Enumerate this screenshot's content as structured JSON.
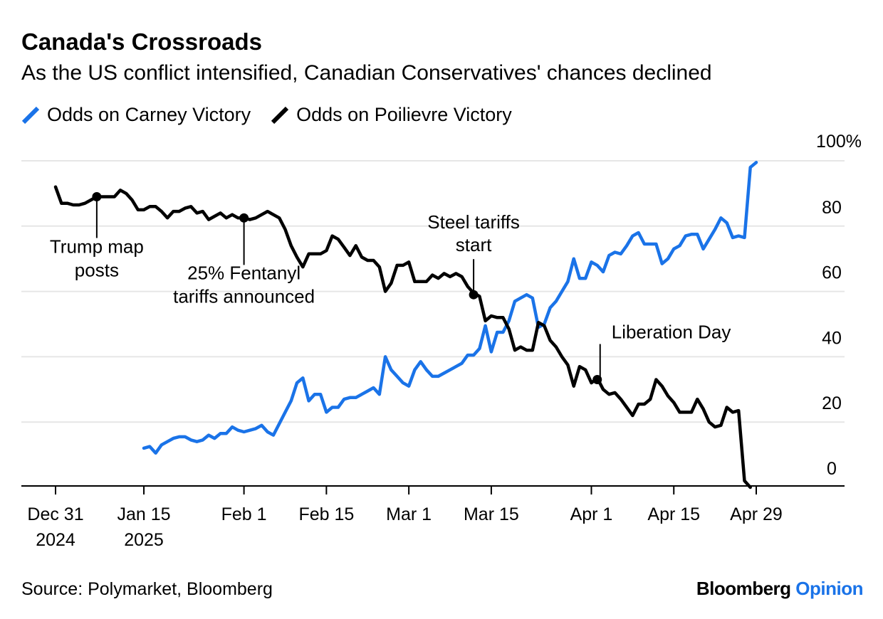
{
  "title": "Canada's Crossroads",
  "subtitle": "As the US conflict intensified, Canadian Conservatives' chances declined",
  "source": "Source: Polymarket, Bloomberg",
  "brand": {
    "name": "Bloomberg",
    "section": "Opinion"
  },
  "colors": {
    "carney": "#1a73e8",
    "poilievre": "#000000",
    "grid": "#e6e6e6"
  },
  "chart_data": {
    "type": "line",
    "ylim": [
      0,
      100
    ],
    "y_ticks": [
      0,
      20,
      40,
      60,
      80,
      100
    ],
    "y_tick_labels": [
      "0",
      "20",
      "40",
      "60",
      "80",
      "100%"
    ],
    "x_ticks": [
      {
        "date": "2024-12-31",
        "line1": "Dec 31",
        "line2": "2024"
      },
      {
        "date": "2025-01-15",
        "line1": "Jan 15",
        "line2": "2025"
      },
      {
        "date": "2025-02-01",
        "line1": "Feb 1",
        "line2": ""
      },
      {
        "date": "2025-02-15",
        "line1": "Feb 15",
        "line2": ""
      },
      {
        "date": "2025-03-01",
        "line1": "Mar 1",
        "line2": ""
      },
      {
        "date": "2025-03-15",
        "line1": "Mar 15",
        "line2": ""
      },
      {
        "date": "2025-04-01",
        "line1": "Apr 1",
        "line2": ""
      },
      {
        "date": "2025-04-15",
        "line1": "Apr 15",
        "line2": ""
      },
      {
        "date": "2025-04-29",
        "line1": "Apr 29",
        "line2": ""
      }
    ],
    "legend_position": "top-left",
    "series": [
      {
        "name": "Odds on Carney Victory",
        "color": "#1a73e8",
        "points": [
          [
            "2025-01-15",
            12
          ],
          [
            "2025-01-16",
            12.5
          ],
          [
            "2025-01-17",
            10.5
          ],
          [
            "2025-01-18",
            13
          ],
          [
            "2025-01-19",
            14
          ],
          [
            "2025-01-20",
            15
          ],
          [
            "2025-01-21",
            15.5
          ],
          [
            "2025-01-22",
            15.5
          ],
          [
            "2025-01-23",
            14.5
          ],
          [
            "2025-01-24",
            14
          ],
          [
            "2025-01-25",
            14.5
          ],
          [
            "2025-01-26",
            16
          ],
          [
            "2025-01-27",
            15
          ],
          [
            "2025-01-28",
            16.5
          ],
          [
            "2025-01-29",
            16.5
          ],
          [
            "2025-01-30",
            18.5
          ],
          [
            "2025-01-31",
            17.5
          ],
          [
            "2025-02-01",
            17
          ],
          [
            "2025-02-02",
            17.5
          ],
          [
            "2025-02-03",
            18
          ],
          [
            "2025-02-04",
            19
          ],
          [
            "2025-02-05",
            17
          ],
          [
            "2025-02-06",
            16
          ],
          [
            "2025-02-07",
            19.5
          ],
          [
            "2025-02-08",
            23
          ],
          [
            "2025-02-09",
            26.5
          ],
          [
            "2025-02-10",
            32
          ],
          [
            "2025-02-11",
            33.5
          ],
          [
            "2025-02-12",
            26.5
          ],
          [
            "2025-02-13",
            28.5
          ],
          [
            "2025-02-14",
            28.5
          ],
          [
            "2025-02-15",
            23
          ],
          [
            "2025-02-16",
            24.5
          ],
          [
            "2025-02-17",
            24.5
          ],
          [
            "2025-02-18",
            27
          ],
          [
            "2025-02-19",
            27.5
          ],
          [
            "2025-02-20",
            27.5
          ],
          [
            "2025-02-21",
            28.5
          ],
          [
            "2025-02-22",
            29.5
          ],
          [
            "2025-02-23",
            30.5
          ],
          [
            "2025-02-24",
            28.5
          ],
          [
            "2025-02-25",
            40
          ],
          [
            "2025-02-26",
            36
          ],
          [
            "2025-02-27",
            34
          ],
          [
            "2025-02-28",
            32
          ],
          [
            "2025-03-01",
            31
          ],
          [
            "2025-03-02",
            36
          ],
          [
            "2025-03-03",
            38.5
          ],
          [
            "2025-03-04",
            36
          ],
          [
            "2025-03-05",
            34
          ],
          [
            "2025-03-06",
            34
          ],
          [
            "2025-03-07",
            35
          ],
          [
            "2025-03-08",
            36
          ],
          [
            "2025-03-09",
            37
          ],
          [
            "2025-03-10",
            38
          ],
          [
            "2025-03-11",
            40.5
          ],
          [
            "2025-03-12",
            40.5
          ],
          [
            "2025-03-13",
            42.5
          ],
          [
            "2025-03-14",
            49.5
          ],
          [
            "2025-03-15",
            41.5
          ],
          [
            "2025-03-16",
            47.5
          ],
          [
            "2025-03-17",
            47.5
          ],
          [
            "2025-03-18",
            51
          ],
          [
            "2025-03-19",
            57
          ],
          [
            "2025-03-20",
            58
          ],
          [
            "2025-03-21",
            59
          ],
          [
            "2025-03-22",
            58
          ],
          [
            "2025-03-23",
            49
          ],
          [
            "2025-03-24",
            50
          ],
          [
            "2025-03-25",
            55
          ],
          [
            "2025-03-26",
            57
          ],
          [
            "2025-03-27",
            60
          ],
          [
            "2025-03-28",
            63
          ],
          [
            "2025-03-29",
            70
          ],
          [
            "2025-03-30",
            64
          ],
          [
            "2025-03-31",
            64
          ],
          [
            "2025-04-01",
            69
          ],
          [
            "2025-04-02",
            68
          ],
          [
            "2025-04-03",
            66
          ],
          [
            "2025-04-04",
            71
          ],
          [
            "2025-04-05",
            72
          ],
          [
            "2025-04-06",
            71.5
          ],
          [
            "2025-04-07",
            74
          ],
          [
            "2025-04-08",
            77
          ],
          [
            "2025-04-09",
            78
          ],
          [
            "2025-04-10",
            74.5
          ],
          [
            "2025-04-11",
            74.5
          ],
          [
            "2025-04-12",
            74.5
          ],
          [
            "2025-04-13",
            68.5
          ],
          [
            "2025-04-14",
            70
          ],
          [
            "2025-04-15",
            73
          ],
          [
            "2025-04-16",
            74
          ],
          [
            "2025-04-17",
            77
          ],
          [
            "2025-04-18",
            77.5
          ],
          [
            "2025-04-19",
            77.5
          ],
          [
            "2025-04-20",
            73
          ],
          [
            "2025-04-21",
            76
          ],
          [
            "2025-04-22",
            79
          ],
          [
            "2025-04-23",
            82.5
          ],
          [
            "2025-04-24",
            81
          ],
          [
            "2025-04-25",
            76.5
          ],
          [
            "2025-04-26",
            77
          ],
          [
            "2025-04-27",
            76.5
          ],
          [
            "2025-04-28",
            98
          ],
          [
            "2025-04-29",
            99.5
          ]
        ]
      },
      {
        "name": "Odds on Poilievre Victory",
        "color": "#000000",
        "points": [
          [
            "2024-12-31",
            92
          ],
          [
            "2025-01-01",
            87
          ],
          [
            "2025-01-02",
            87
          ],
          [
            "2025-01-03",
            86.5
          ],
          [
            "2025-01-04",
            86.5
          ],
          [
            "2025-01-05",
            87
          ],
          [
            "2025-01-06",
            88
          ],
          [
            "2025-01-07",
            89
          ],
          [
            "2025-01-08",
            89
          ],
          [
            "2025-01-09",
            89
          ],
          [
            "2025-01-10",
            89
          ],
          [
            "2025-01-11",
            91
          ],
          [
            "2025-01-12",
            90
          ],
          [
            "2025-01-13",
            88
          ],
          [
            "2025-01-14",
            85
          ],
          [
            "2025-01-15",
            85
          ],
          [
            "2025-01-16",
            86
          ],
          [
            "2025-01-17",
            86
          ],
          [
            "2025-01-18",
            84.5
          ],
          [
            "2025-01-19",
            82.5
          ],
          [
            "2025-01-20",
            84.5
          ],
          [
            "2025-01-21",
            84.5
          ],
          [
            "2025-01-22",
            85.5
          ],
          [
            "2025-01-23",
            86
          ],
          [
            "2025-01-24",
            84
          ],
          [
            "2025-01-25",
            84.5
          ],
          [
            "2025-01-26",
            82
          ],
          [
            "2025-01-27",
            83
          ],
          [
            "2025-01-28",
            84
          ],
          [
            "2025-01-29",
            82.5
          ],
          [
            "2025-01-30",
            83.5
          ],
          [
            "2025-01-31",
            82.5
          ],
          [
            "2025-02-01",
            82.5
          ],
          [
            "2025-02-02",
            82
          ],
          [
            "2025-02-03",
            82.5
          ],
          [
            "2025-02-04",
            83.5
          ],
          [
            "2025-02-05",
            84.5
          ],
          [
            "2025-02-06",
            83.5
          ],
          [
            "2025-02-07",
            82.5
          ],
          [
            "2025-02-08",
            79
          ],
          [
            "2025-02-09",
            74
          ],
          [
            "2025-02-10",
            70.5
          ],
          [
            "2025-02-11",
            67.5
          ],
          [
            "2025-02-12",
            71.5
          ],
          [
            "2025-02-13",
            71.5
          ],
          [
            "2025-02-14",
            71.5
          ],
          [
            "2025-02-15",
            72.5
          ],
          [
            "2025-02-16",
            77
          ],
          [
            "2025-02-17",
            76
          ],
          [
            "2025-02-18",
            73.5
          ],
          [
            "2025-02-19",
            71
          ],
          [
            "2025-02-20",
            74
          ],
          [
            "2025-02-21",
            70.5
          ],
          [
            "2025-02-22",
            69.5
          ],
          [
            "2025-02-23",
            69.5
          ],
          [
            "2025-02-24",
            67.5
          ],
          [
            "2025-02-25",
            60
          ],
          [
            "2025-02-26",
            62.5
          ],
          [
            "2025-02-27",
            68
          ],
          [
            "2025-02-28",
            68
          ],
          [
            "2025-03-01",
            69
          ],
          [
            "2025-03-02",
            63
          ],
          [
            "2025-03-03",
            63
          ],
          [
            "2025-03-04",
            63
          ],
          [
            "2025-03-05",
            65
          ],
          [
            "2025-03-06",
            64
          ],
          [
            "2025-03-07",
            65.5
          ],
          [
            "2025-03-08",
            64.5
          ],
          [
            "2025-03-09",
            65.5
          ],
          [
            "2025-03-10",
            64.5
          ],
          [
            "2025-03-11",
            61.5
          ],
          [
            "2025-03-12",
            59.5
          ],
          [
            "2025-03-13",
            58.5
          ],
          [
            "2025-03-14",
            51
          ],
          [
            "2025-03-15",
            52.5
          ],
          [
            "2025-03-16",
            52
          ],
          [
            "2025-03-17",
            52
          ],
          [
            "2025-03-18",
            48.5
          ],
          [
            "2025-03-19",
            42
          ],
          [
            "2025-03-20",
            43
          ],
          [
            "2025-03-21",
            42
          ],
          [
            "2025-03-22",
            42
          ],
          [
            "2025-03-23",
            50.5
          ],
          [
            "2025-03-24",
            49.5
          ],
          [
            "2025-03-25",
            45
          ],
          [
            "2025-03-26",
            43
          ],
          [
            "2025-03-27",
            40
          ],
          [
            "2025-03-28",
            37.5
          ],
          [
            "2025-03-29",
            31
          ],
          [
            "2025-03-30",
            37
          ],
          [
            "2025-03-31",
            36
          ],
          [
            "2025-04-01",
            32
          ],
          [
            "2025-04-02",
            33.5
          ],
          [
            "2025-04-03",
            30
          ],
          [
            "2025-04-04",
            28.5
          ],
          [
            "2025-04-05",
            29
          ],
          [
            "2025-04-06",
            27
          ],
          [
            "2025-04-07",
            24.5
          ],
          [
            "2025-04-08",
            22
          ],
          [
            "2025-04-09",
            25.5
          ],
          [
            "2025-04-10",
            25.5
          ],
          [
            "2025-04-11",
            27
          ],
          [
            "2025-04-12",
            33
          ],
          [
            "2025-04-13",
            31
          ],
          [
            "2025-04-14",
            28
          ],
          [
            "2025-04-15",
            26
          ],
          [
            "2025-04-16",
            23
          ],
          [
            "2025-04-17",
            23
          ],
          [
            "2025-04-18",
            23
          ],
          [
            "2025-04-19",
            27
          ],
          [
            "2025-04-20",
            24
          ],
          [
            "2025-04-21",
            20
          ],
          [
            "2025-04-22",
            18.5
          ],
          [
            "2025-04-23",
            19
          ],
          [
            "2025-04-24",
            24.5
          ],
          [
            "2025-04-25",
            23
          ],
          [
            "2025-04-26",
            23.5
          ],
          [
            "2025-04-27",
            2
          ],
          [
            "2025-04-28",
            0
          ]
        ]
      }
    ],
    "annotations": [
      {
        "text": [
          "Trump map",
          "posts"
        ],
        "date": "2025-01-07",
        "value": 89,
        "label_position": "below"
      },
      {
        "text": [
          "25% Fentanyl",
          "tariffs announced"
        ],
        "date": "2025-02-01",
        "value": 82.5,
        "label_position": "below"
      },
      {
        "text": [
          "Steel tariffs",
          "start"
        ],
        "date": "2025-03-12",
        "value": 59,
        "label_position": "above"
      },
      {
        "text": [
          "Liberation Day"
        ],
        "date": "2025-04-02",
        "value": 33,
        "label_position": "above-right"
      }
    ]
  }
}
